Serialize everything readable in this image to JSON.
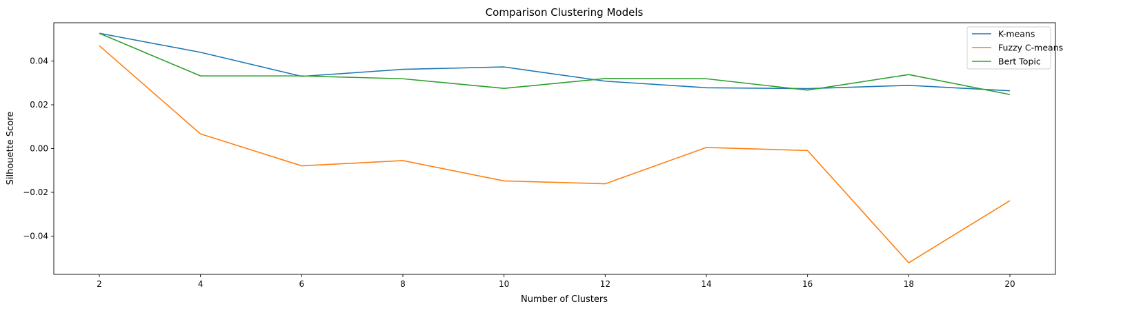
{
  "chart_data": {
    "type": "line",
    "title": "Comparison Clustering Models",
    "xlabel": "Number of Clusters",
    "ylabel": "Silhouette Score",
    "x": [
      2,
      4,
      6,
      8,
      10,
      12,
      14,
      16,
      18,
      20
    ],
    "xticks": [
      "2",
      "4",
      "6",
      "8",
      "10",
      "12",
      "14",
      "16",
      "18",
      "20"
    ],
    "yticks": [
      -0.04,
      -0.02,
      0.0,
      0.02,
      0.04
    ],
    "ytick_labels": [
      "−0.04",
      "−0.02",
      "0.00",
      "0.02",
      "0.04"
    ],
    "xlim": [
      1.1,
      20.9
    ],
    "ylim": [
      -0.0575,
      0.0575
    ],
    "grid": false,
    "legend_position": "top-right",
    "series": [
      {
        "name": "K-means",
        "color": "#1f77b4",
        "values": [
          0.0527,
          0.044,
          0.033,
          0.0362,
          0.0373,
          0.0308,
          0.0278,
          0.0274,
          0.0289,
          0.0264
        ]
      },
      {
        "name": "Fuzzy C-means",
        "color": "#ff7f0e",
        "values": [
          0.047,
          0.0067,
          -0.0079,
          -0.0055,
          -0.0148,
          -0.0161,
          0.0005,
          -0.0009,
          -0.0522,
          -0.0238
        ]
      },
      {
        "name": "Bert Topic",
        "color": "#2ca02c",
        "values": [
          0.0527,
          0.0332,
          0.0332,
          0.0319,
          0.0275,
          0.032,
          0.0319,
          0.0267,
          0.0338,
          0.0247
        ]
      }
    ]
  }
}
